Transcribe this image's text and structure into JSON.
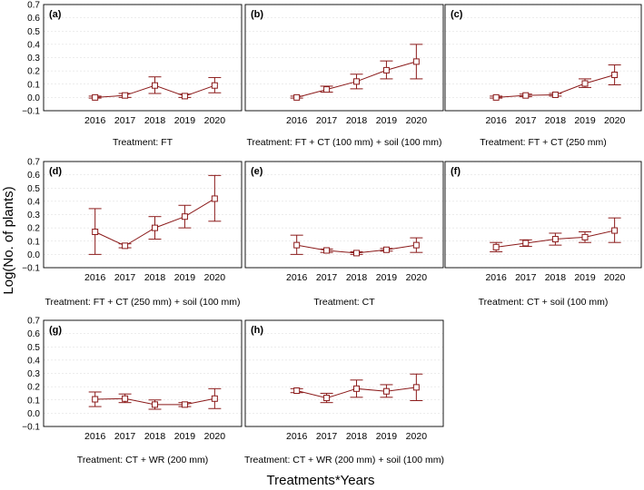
{
  "figure": {
    "y_axis_label": "Log(No. of plants)",
    "x_axis_label": "Treatments*Years"
  },
  "style": {
    "series_color": "#8b1a1a",
    "grid_color": "#d9d9d9",
    "frame_color": "#000000"
  },
  "chart_data": [
    {
      "type": "line",
      "panel": "(a)",
      "treatment": "Treatment: FT",
      "categories": [
        "2016",
        "2017",
        "2018",
        "2019",
        "2020"
      ],
      "values": [
        0.0,
        0.015,
        0.09,
        0.01,
        0.09
      ],
      "error_low": [
        -0.005,
        0.0,
        0.03,
        0.0,
        0.035
      ],
      "error_high": [
        0.01,
        0.03,
        0.155,
        0.025,
        0.15
      ],
      "ylim": [
        -0.1,
        0.7
      ],
      "yticks": [
        "−0.1",
        "0.0",
        "0.1",
        "0.2",
        "0.3",
        "0.4",
        "0.5",
        "0.6",
        "0.7"
      ]
    },
    {
      "type": "line",
      "panel": "(b)",
      "treatment": "Treatment: FT + CT (100 mm) + soil (100 mm)",
      "categories": [
        "2016",
        "2017",
        "2018",
        "2019",
        "2020"
      ],
      "values": [
        0.0,
        0.06,
        0.12,
        0.205,
        0.27
      ],
      "error_low": [
        -0.005,
        0.04,
        0.065,
        0.14,
        0.14
      ],
      "error_high": [
        0.01,
        0.085,
        0.175,
        0.275,
        0.4
      ],
      "ylim": [
        -0.1,
        0.7
      ],
      "yticks": []
    },
    {
      "type": "line",
      "panel": "(c)",
      "treatment": "Treatment: FT + CT (250 mm)",
      "categories": [
        "2016",
        "2017",
        "2018",
        "2019",
        "2020"
      ],
      "values": [
        0.0,
        0.015,
        0.02,
        0.105,
        0.17
      ],
      "error_low": [
        -0.005,
        0.005,
        0.01,
        0.075,
        0.095
      ],
      "error_high": [
        0.01,
        0.025,
        0.03,
        0.14,
        0.245
      ],
      "ylim": [
        -0.1,
        0.7
      ],
      "yticks": []
    },
    {
      "type": "line",
      "panel": "(d)",
      "treatment": "Treatment: FT + CT (250 mm) + soil (100 mm)",
      "categories": [
        "2016",
        "2017",
        "2018",
        "2019",
        "2020"
      ],
      "values": [
        0.17,
        0.065,
        0.2,
        0.285,
        0.42
      ],
      "error_low": [
        0.0,
        0.05,
        0.115,
        0.2,
        0.25
      ],
      "error_high": [
        0.345,
        0.08,
        0.285,
        0.37,
        0.595
      ],
      "ylim": [
        -0.1,
        0.7
      ],
      "yticks": [
        "−0.1",
        "0.0",
        "0.1",
        "0.2",
        "0.3",
        "0.4",
        "0.5",
        "0.6",
        "0.7"
      ]
    },
    {
      "type": "line",
      "panel": "(e)",
      "treatment": "Treatment: CT",
      "categories": [
        "2016",
        "2017",
        "2018",
        "2019",
        "2020"
      ],
      "values": [
        0.07,
        0.03,
        0.01,
        0.035,
        0.07
      ],
      "error_low": [
        0.0,
        0.015,
        0.0,
        0.025,
        0.015
      ],
      "error_high": [
        0.145,
        0.04,
        0.02,
        0.045,
        0.125
      ],
      "ylim": [
        -0.1,
        0.7
      ],
      "yticks": []
    },
    {
      "type": "line",
      "panel": "(f)",
      "treatment": "Treatment: CT + soil (100 mm)",
      "categories": [
        "2016",
        "2017",
        "2018",
        "2019",
        "2020"
      ],
      "values": [
        0.055,
        0.085,
        0.115,
        0.13,
        0.18
      ],
      "error_low": [
        0.02,
        0.06,
        0.07,
        0.09,
        0.09
      ],
      "error_high": [
        0.09,
        0.11,
        0.16,
        0.17,
        0.275
      ],
      "ylim": [
        -0.1,
        0.7
      ],
      "yticks": []
    },
    {
      "type": "line",
      "panel": "(g)",
      "treatment": "Treatment: CT + WR (200 mm)",
      "categories": [
        "2016",
        "2017",
        "2018",
        "2019",
        "2020"
      ],
      "values": [
        0.105,
        0.11,
        0.065,
        0.065,
        0.11
      ],
      "error_low": [
        0.05,
        0.08,
        0.03,
        0.05,
        0.035
      ],
      "error_high": [
        0.16,
        0.145,
        0.1,
        0.08,
        0.185
      ],
      "ylim": [
        -0.1,
        0.7
      ],
      "yticks": [
        "−0.1",
        "0.0",
        "0.1",
        "0.2",
        "0.3",
        "0.4",
        "0.5",
        "0.6",
        "0.7"
      ]
    },
    {
      "type": "line",
      "panel": "(h)",
      "treatment": "Treatment: CT + WR (200 mm) + soil (100 mm)",
      "categories": [
        "2016",
        "2017",
        "2018",
        "2019",
        "2020"
      ],
      "values": [
        0.17,
        0.115,
        0.185,
        0.165,
        0.195
      ],
      "error_low": [
        0.155,
        0.08,
        0.12,
        0.12,
        0.095
      ],
      "error_high": [
        0.185,
        0.15,
        0.25,
        0.215,
        0.295
      ],
      "ylim": [
        -0.1,
        0.7
      ],
      "yticks": []
    }
  ]
}
